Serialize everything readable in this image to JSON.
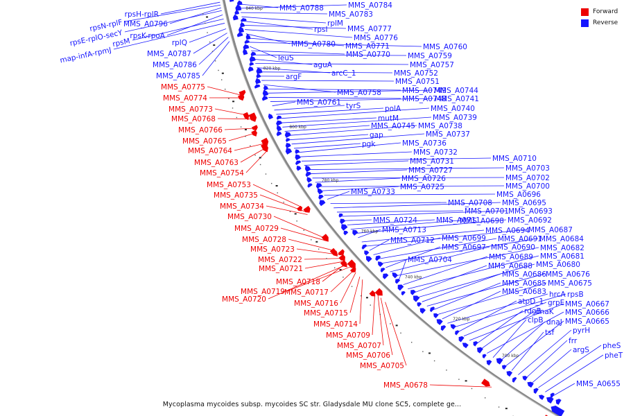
{
  "title": "Mycoplasma mycoides subsp. mycoides SC str. Gladysdale MU clone SC5, complete ge...",
  "legend": [
    {
      "label": "Forward",
      "color": "#ee0000"
    },
    {
      "label": "Reverse",
      "color": "#1515ff"
    }
  ],
  "colors": {
    "forward": "#ee0000",
    "reverse": "#1515ff",
    "backbone": "#888888"
  },
  "ticks": [
    "840 kbp",
    "820 kbp",
    "800 kbp",
    "780 kbp",
    "760 kbp",
    "740 kbp",
    "720 kbp",
    "700 kbp"
  ],
  "forward_labels": [
    "MMS_A0775",
    "MMS_A0774",
    "MMS_A0773",
    "MMS_A0768",
    "MMS_A0766",
    "MMS_A0765",
    "MMS_A0764",
    "MMS_A0763",
    "MMS_A0754",
    "MMS_A0753",
    "MMS_A0735",
    "MMS_A0734",
    "MMS_A0730",
    "MMS_A0729",
    "MMS_A0728",
    "MMS_A0723",
    "MMS_A0722",
    "MMS_A0721",
    "MMS_A0718",
    "MMS_A0719",
    "MMS_A0717",
    "MMS_A0720",
    "MMS_A0716",
    "MMS_A0715",
    "MMS_A0714",
    "MMS_A0709",
    "MMS_A0707",
    "MMS_A0706",
    "MMS_A0705",
    "MMS_A0678"
  ],
  "reverse_outer_labels": [
    "rpsH-rplR",
    "rpsN-rplF",
    "MMS_A0796",
    "rpsE-rplO-secY",
    "rpsK-rpoA",
    "rpsM",
    "map-infA-rpmJ",
    "rplQ",
    "MMS_A0787",
    "MMS_A0786",
    "MMS_A0785"
  ],
  "reverse_inner_labels": [
    "MMS_A0788",
    "MMS_A0784",
    "MMS_A0783",
    "rplM",
    "rpsI",
    "MMS_A0777",
    "MMS_A0776",
    "MMS_A0780",
    "MMS_A0771",
    "MMS_A0760",
    "leuS",
    "MMS_A0770",
    "MMS_A0759",
    "aguA",
    "MMS_A0757",
    "arcC_1",
    "MMS_A0752",
    "argF",
    "MMS_A0751",
    "MMS_A0758",
    "MMS_A0749",
    "MMS_A0744",
    "MMS_A0748",
    "MMS_A0741",
    "MMS_A0761",
    "tyrS",
    "polA",
    "MMS_A0740",
    "mutM",
    "MMS_A0739",
    "MMS_A0745",
    "MMS_A0738",
    "gap",
    "MMS_A0737",
    "pgk",
    "MMS_A0736",
    "MMS_A0732",
    "MMS_A0710",
    "MMS_A0731",
    "MMS_A0703",
    "MMS_A0727",
    "MMS_A0702",
    "MMS_A0726",
    "MMS_A0700",
    "MMS_A0725",
    "MMS_A0696",
    "MMS_A0733",
    "MMS_A0708",
    "MMS_A0695",
    "MMS_A0701",
    "MMS_A0693",
    "MMS_A0724",
    "MMS_A0711",
    "MMS_A0698",
    "MMS_A0692",
    "MMS_A0713",
    "MMS_A0694",
    "MMS_A0687",
    "MMS_A0712",
    "MMS_A0699",
    "MMS_A0691",
    "MMS_A0684",
    "MMS_A0697",
    "MMS_A0690",
    "MMS_A0682",
    "MMS_A0704",
    "MMS_A0689",
    "MMS_A0681",
    "MMS_A0688",
    "MMS_A0680",
    "MMS_A0686",
    "MMS_A0676",
    "MMS_A0685",
    "MMS_A0675",
    "MMS_A0683",
    "hrcA",
    "rpsB",
    "atpD_1",
    "grpE",
    "MMS_A0667",
    "rdgB",
    "dnaK",
    "MMS_A0666",
    "clpB",
    "dnaJ",
    "MMS_A0665",
    "tsf",
    "pyrH",
    "frr",
    "argS",
    "pheS",
    "pheT",
    "MMS_A0655"
  ]
}
